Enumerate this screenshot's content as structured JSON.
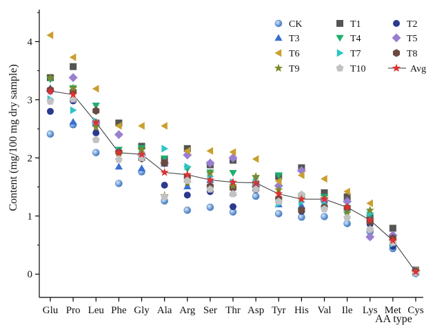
{
  "chart_data": {
    "type": "scatter",
    "title": "",
    "xlabel": "AA type",
    "ylabel": "Content (mg/100 mg dry sample)",
    "categories": [
      "Glu",
      "Pro",
      "Leu",
      "Phe",
      "Gly",
      "Ala",
      "Arg",
      "Ser",
      "Thr",
      "Asp",
      "Tyr",
      "His",
      "Val",
      "Ile",
      "Lys",
      "Met",
      "Cys"
    ],
    "ylim": [
      -0.4,
      4.55
    ],
    "yticks": [
      "0",
      "1",
      "2",
      "3",
      "4"
    ],
    "grid": false,
    "legend_position": "top-right",
    "series": [
      {
        "name": "CK",
        "marker": "sphere",
        "color": "#6f9fd8",
        "values": [
          2.41,
          2.57,
          2.09,
          1.56,
          1.76,
          1.26,
          1.1,
          1.15,
          1.07,
          1.34,
          1.04,
          0.98,
          0.99,
          0.87,
          0.73,
          0.44,
          0.01
        ]
      },
      {
        "name": "T1",
        "marker": "square",
        "color": "#555555",
        "values": [
          3.38,
          3.57,
          2.6,
          2.6,
          2.2,
          1.98,
          2.16,
          1.88,
          1.96,
          1.55,
          1.68,
          1.83,
          1.4,
          1.33,
          0.97,
          0.79,
          0.07
        ]
      },
      {
        "name": "T2",
        "marker": "circle",
        "color": "#2b3a8f",
        "values": [
          2.8,
          2.98,
          2.43,
          2.1,
          2.0,
          1.53,
          1.36,
          1.42,
          1.16,
          1.45,
          1.25,
          1.08,
          1.25,
          1.13,
          0.86,
          0.48,
          0.02
        ]
      },
      {
        "name": "T3",
        "marker": "triangle-up",
        "color": "#3a6fd0",
        "values": [
          3.2,
          2.62,
          2.6,
          1.85,
          1.82,
          1.9,
          1.51,
          1.62,
          1.4,
          1.52,
          1.2,
          1.18,
          1.3,
          1.15,
          0.95,
          0.55,
          0.03
        ]
      },
      {
        "name": "T4",
        "marker": "triangle-down",
        "color": "#1fae6e",
        "values": [
          3.35,
          3.2,
          2.9,
          2.14,
          2.17,
          1.99,
          1.81,
          1.75,
          1.74,
          1.65,
          1.7,
          1.3,
          1.33,
          1.14,
          1.01,
          0.61,
          0.05
        ]
      },
      {
        "name": "T5",
        "marker": "diamond",
        "color": "#9a7fd0",
        "values": [
          3.15,
          3.38,
          2.6,
          2.4,
          2.05,
          1.91,
          2.05,
          1.91,
          2.0,
          1.51,
          1.52,
          1.78,
          1.27,
          1.25,
          0.64,
          0.67,
          0.06
        ]
      },
      {
        "name": "T6",
        "marker": "triangle-left",
        "color": "#c9a030",
        "values": [
          4.11,
          3.73,
          3.19,
          2.55,
          2.55,
          2.55,
          2.12,
          2.12,
          2.1,
          1.98,
          1.6,
          1.7,
          1.64,
          1.42,
          1.22,
          0.58,
          0.06
        ]
      },
      {
        "name": "T7",
        "marker": "triangle-right",
        "color": "#2ec4c8",
        "values": [
          3.01,
          2.82,
          2.63,
          2.12,
          2.1,
          2.16,
          1.85,
          1.68,
          1.58,
          1.58,
          1.21,
          1.24,
          1.2,
          1.09,
          1.05,
          0.52,
          0.02
        ]
      },
      {
        "name": "T8",
        "marker": "hexagon",
        "color": "#6b4a42",
        "values": [
          3.17,
          3.14,
          2.81,
          2.1,
          1.99,
          1.91,
          1.67,
          1.51,
          1.48,
          1.47,
          1.3,
          1.1,
          1.15,
          1.14,
          0.9,
          0.62,
          0.05
        ]
      },
      {
        "name": "T9",
        "marker": "star",
        "color": "#7c8a2a",
        "values": [
          3.38,
          3.2,
          2.53,
          2.08,
          2.14,
          1.35,
          1.57,
          1.74,
          1.52,
          1.68,
          1.45,
          1.35,
          1.3,
          1.05,
          1.1,
          0.56,
          0.04
        ]
      },
      {
        "name": "T10",
        "marker": "pentagon",
        "color": "#c2c2c2",
        "values": [
          2.97,
          3.01,
          2.31,
          1.97,
          2.0,
          1.33,
          1.61,
          1.46,
          1.38,
          1.46,
          1.25,
          1.37,
          1.12,
          0.97,
          0.77,
          0.54,
          0.02
        ]
      },
      {
        "name": "Avg",
        "marker": "star-line",
        "color": "#e03030",
        "line_color": "#333333",
        "values": [
          3.15,
          3.09,
          2.61,
          2.09,
          2.06,
          1.75,
          1.71,
          1.62,
          1.58,
          1.57,
          1.38,
          1.29,
          1.29,
          1.15,
          0.93,
          0.58,
          0.04
        ]
      }
    ]
  }
}
